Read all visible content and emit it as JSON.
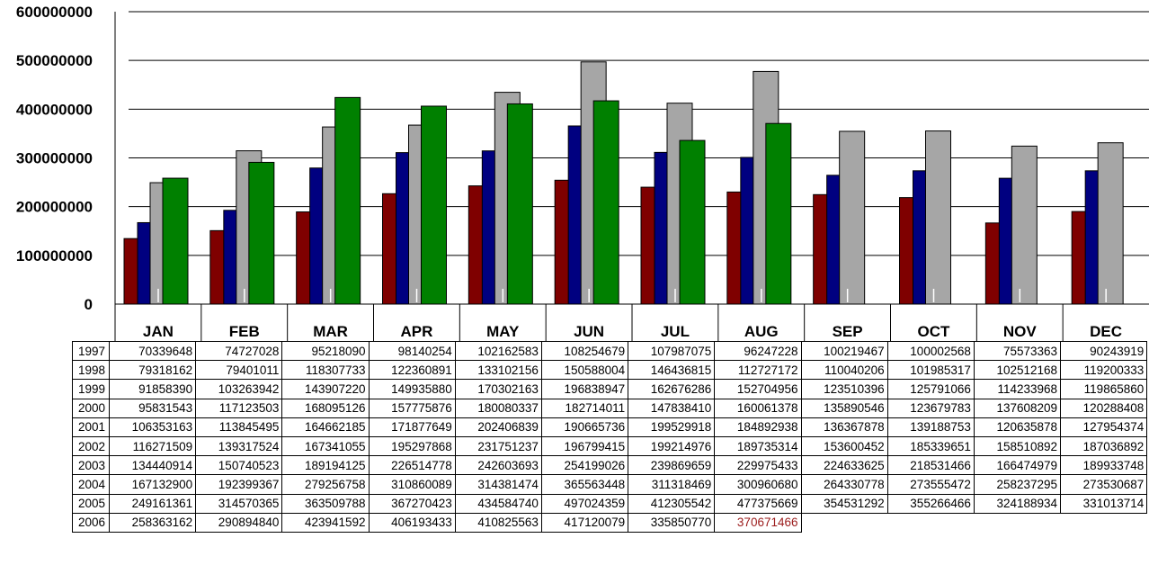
{
  "chart_data": {
    "type": "bar",
    "categories": [
      "JAN",
      "FEB",
      "MAR",
      "APR",
      "MAY",
      "JUN",
      "JUL",
      "AUG",
      "SEP",
      "OCT",
      "NOV",
      "DEC"
    ],
    "ylim": [
      0,
      600000000
    ],
    "yticks": [
      "0",
      "100000000",
      "200000000",
      "300000000",
      "400000000",
      "500000000",
      "600000000"
    ],
    "grid": true,
    "bar_series": [
      {
        "label": "2003",
        "color": "#7f0000"
      },
      {
        "label": "2004",
        "color": "#000080"
      },
      {
        "label": "2005",
        "color": "#a6a6a6"
      },
      {
        "label": "2006",
        "color": "#008000"
      }
    ],
    "highlight_color": "#9b1b1b",
    "table": [
      {
        "year": "1997",
        "values": [
          "70339648",
          "74727028",
          "95218090",
          "98140254",
          "102162583",
          "108254679",
          "107987075",
          "96247228",
          "100219467",
          "100002568",
          "75573363",
          "90243919"
        ]
      },
      {
        "year": "1998",
        "values": [
          "79318162",
          "79401011",
          "118307733",
          "122360891",
          "133102156",
          "150588004",
          "146436815",
          "112727172",
          "110040206",
          "101985317",
          "102512168",
          "119200333"
        ]
      },
      {
        "year": "1999",
        "values": [
          "91858390",
          "103263942",
          "143907220",
          "149935880",
          "170302163",
          "196838947",
          "162676286",
          "152704956",
          "123510396",
          "125791066",
          "114233968",
          "119865860"
        ]
      },
      {
        "year": "2000",
        "values": [
          "95831543",
          "117123503",
          "168095126",
          "157775876",
          "180080337",
          "182714011",
          "147838410",
          "160061378",
          "135890546",
          "123679783",
          "137608209",
          "120288408"
        ]
      },
      {
        "year": "2001",
        "values": [
          "106353163",
          "113845495",
          "164662185",
          "171877649",
          "202406839",
          "190665736",
          "199529918",
          "184892938",
          "136367878",
          "139188753",
          "120635878",
          "127954374"
        ]
      },
      {
        "year": "2002",
        "values": [
          "116271509",
          "139317524",
          "167341055",
          "195297868",
          "231751237",
          "196799415",
          "199214976",
          "189735314",
          "153600452",
          "185339651",
          "158510892",
          "187036892"
        ]
      },
      {
        "year": "2003",
        "values": [
          "134440914",
          "150740523",
          "189194125",
          "226514778",
          "242603693",
          "254199026",
          "239869659",
          "229975433",
          "224633625",
          "218531466",
          "166474979",
          "189933748"
        ]
      },
      {
        "year": "2004",
        "values": [
          "167132900",
          "192399367",
          "279256758",
          "310860089",
          "314381474",
          "365563448",
          "311318469",
          "300960680",
          "264330778",
          "273555472",
          "258237295",
          "273530687"
        ]
      },
      {
        "year": "2005",
        "values": [
          "249161361",
          "314570365",
          "363509788",
          "367270423",
          "434584740",
          "497024359",
          "412305542",
          "477375669",
          "354531292",
          "355266466",
          "324188934",
          "331013714"
        ]
      },
      {
        "year": "2006",
        "values": [
          "258363162",
          "290894840",
          "423941592",
          "406193433",
          "410825563",
          "417120079",
          "335850770",
          "370671466",
          "",
          "",
          "",
          ""
        ]
      }
    ]
  }
}
